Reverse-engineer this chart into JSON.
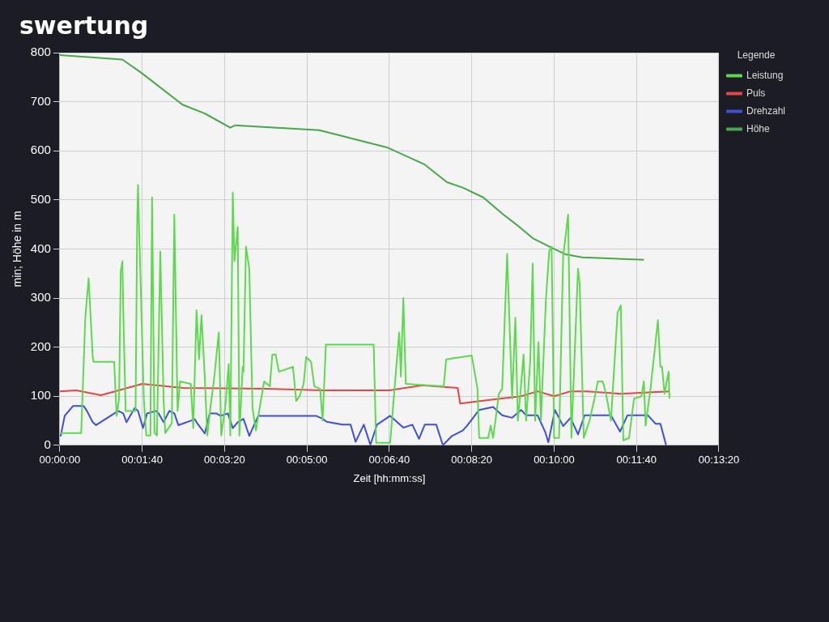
{
  "chart_data": {
    "type": "line",
    "title": "swertung",
    "xlabel": "Zeit [hh:mm:ss]",
    "ylabel": "min; Höhe in m",
    "legend_title": "Legende",
    "legend": "right",
    "grid": true,
    "marker": "none",
    "line_style": "solid",
    "xlim": [
      0,
      800
    ],
    "xticks": [
      {
        "value": 0,
        "label": "00:00:00"
      },
      {
        "value": 100,
        "label": "00:01:40"
      },
      {
        "value": 200,
        "label": "00:03:20"
      },
      {
        "value": 300,
        "label": "00:05:00"
      },
      {
        "value": 400,
        "label": "00:06:40"
      },
      {
        "value": 500,
        "label": "00:08:20"
      },
      {
        "value": 600,
        "label": "00:10:00"
      },
      {
        "value": 700,
        "label": "00:11:40"
      },
      {
        "value": 800,
        "label": "00:13:20"
      }
    ],
    "ylim": [
      0,
      800
    ],
    "yticks": [
      0,
      100,
      200,
      300,
      400,
      500,
      600,
      700,
      800
    ],
    "series": [
      {
        "name": "Leistung",
        "color": "#5ed84e",
        "x": [
          1,
          26,
          31,
          35,
          40,
          41,
          66,
          69,
          72,
          74,
          76,
          77,
          80,
          92,
          94,
          95,
          96,
          102,
          105,
          110,
          112,
          115,
          118,
          122,
          126,
          128,
          132,
          136,
          139,
          143,
          146,
          159,
          162,
          166,
          169,
          172,
          176,
          179,
          183,
          187,
          193,
          196,
          201,
          205,
          207,
          210,
          212,
          216,
          218,
          222,
          223,
          226,
          230,
          234,
          238,
          244,
          248,
          255,
          258,
          262,
          266,
          275,
          283,
          287,
          291,
          296,
          299,
          305,
          309,
          316,
          319,
          323,
          381,
          384,
          401,
          408,
          412,
          414,
          417,
          420,
          466,
          469,
          500,
          507,
          509,
          520,
          523,
          526,
          533,
          537,
          543,
          549,
          553,
          556,
          559,
          563,
          566,
          571,
          574,
          577,
          581,
          584,
          590,
          594,
          597,
          600,
          606,
          611,
          617,
          621,
          629,
          631,
          636,
          643,
          649,
          653,
          659,
          663,
          669,
          677,
          681,
          684,
          691,
          697,
          706,
          709,
          711,
          717,
          726,
          729,
          731,
          734,
          739,
          740
        ],
        "values": [
          25,
          25,
          260,
          340,
          180,
          170,
          170,
          60,
          95,
          355,
          375,
          280,
          70,
          70,
          460,
          530,
          460,
          95,
          20,
          20,
          505,
          25,
          20,
          395,
          95,
          25,
          35,
          45,
          470,
          70,
          130,
          125,
          35,
          275,
          175,
          265,
          140,
          20,
          80,
          130,
          230,
          20,
          80,
          165,
          20,
          515,
          375,
          445,
          20,
          160,
          150,
          405,
          360,
          75,
          30,
          90,
          130,
          120,
          185,
          185,
          150,
          155,
          160,
          90,
          100,
          125,
          180,
          170,
          120,
          115,
          50,
          205,
          205,
          5,
          5,
          150,
          230,
          140,
          300,
          125,
          120,
          175,
          183,
          115,
          15,
          15,
          40,
          15,
          105,
          115,
          390,
          95,
          260,
          50,
          105,
          185,
          50,
          170,
          370,
          50,
          210,
          50,
          295,
          395,
          405,
          15,
          15,
          385,
          470,
          15,
          360,
          330,
          15,
          50,
          95,
          130,
          130,
          105,
          50,
          270,
          285,
          10,
          15,
          95,
          100,
          130,
          40,
          115,
          255,
          160,
          160,
          105,
          150,
          95
        ]
      },
      {
        "name": "Puls",
        "color": "#e54545",
        "x": [
          0,
          20,
          50,
          100,
          150,
          250,
          320,
          400,
          440,
          483,
          486,
          520,
          560,
          580,
          600,
          620,
          640,
          680,
          740
        ],
        "values": [
          110,
          112,
          102,
          125,
          117,
          115,
          112,
          112,
          122,
          117,
          85,
          92,
          100,
          110,
          100,
          110,
          110,
          105,
          110
        ]
      },
      {
        "name": "Drehzahl",
        "color": "#3f4fd6",
        "x": [
          1,
          6,
          16,
          29,
          33,
          40,
          44,
          71,
          77,
          81,
          91,
          95,
          101,
          106,
          117,
          120,
          126,
          133,
          139,
          144,
          164,
          166,
          176,
          182,
          190,
          195,
          204,
          210,
          216,
          223,
          230,
          236,
          241,
          311,
          319,
          324,
          343,
          353,
          359,
          369,
          377,
          385,
          401,
          409,
          417,
          428,
          436,
          443,
          457,
          465,
          476,
          489,
          494,
          509,
          526,
          537,
          549,
          560,
          566,
          580,
          589,
          593,
          601,
          611,
          620,
          629,
          637,
          651,
          669,
          680,
          689,
          714,
          723,
          729,
          736
        ],
        "values": [
          18,
          60,
          80,
          80,
          70,
          47,
          41,
          70,
          65,
          47,
          76,
          70,
          35,
          65,
          70,
          65,
          47,
          70,
          65,
          41,
          53,
          47,
          24,
          65,
          65,
          60,
          65,
          35,
          47,
          54,
          19,
          42,
          60,
          60,
          54,
          48,
          42,
          42,
          7,
          42,
          1,
          42,
          60,
          48,
          36,
          42,
          13,
          42,
          42,
          0,
          19,
          30,
          39,
          72,
          78,
          61,
          56,
          72,
          61,
          61,
          28,
          6,
          72,
          39,
          56,
          22,
          61,
          61,
          61,
          28,
          61,
          61,
          44,
          44,
          0
        ]
      },
      {
        "name": "Höhe",
        "color": "#4aa64a",
        "x": [
          0,
          76,
          99,
          149,
          176,
          207,
          213,
          315,
          397,
          443,
          470,
          489,
          514,
          537,
          554,
          574,
          594,
          614,
          634,
          709
        ],
        "values": [
          795,
          786,
          759,
          694,
          676,
          647,
          652,
          642,
          607,
          572,
          536,
          525,
          505,
          472,
          450,
          422,
          405,
          389,
          383,
          378
        ]
      }
    ]
  }
}
